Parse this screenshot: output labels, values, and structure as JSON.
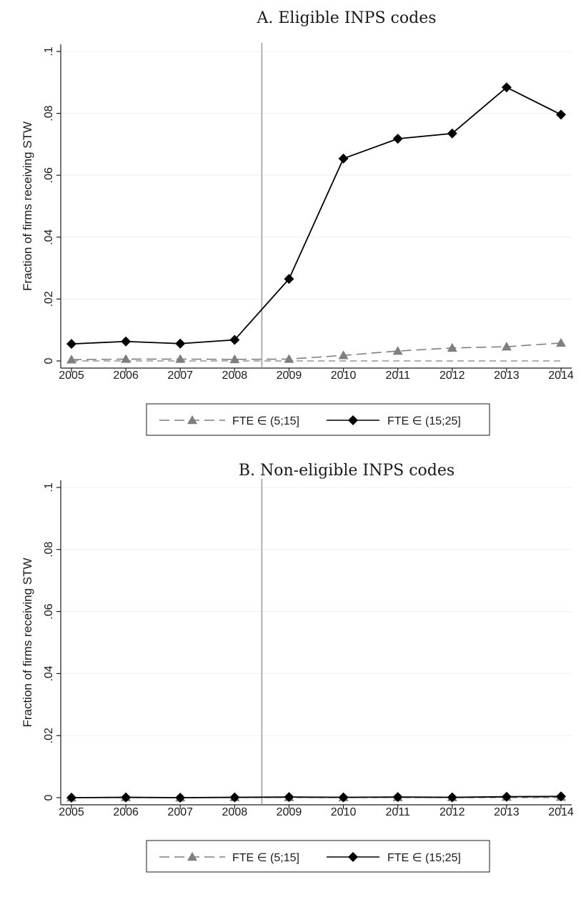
{
  "chart_data": [
    {
      "type": "line",
      "title": "A. Eligible INPS codes",
      "ylabel": "Fraction of firms receiving STW",
      "xlabel": "",
      "x": [
        2005,
        2006,
        2007,
        2008,
        2009,
        2010,
        2011,
        2012,
        2013,
        2014
      ],
      "x_tick_labels": [
        "2005",
        "2006",
        "2007",
        "2008",
        "2009",
        "2010",
        "2011",
        "2012",
        "2013",
        "2014"
      ],
      "ylim": [
        0,
        0.1
      ],
      "y_ticks": [
        0,
        0.02,
        0.04,
        0.06,
        0.08,
        0.1
      ],
      "y_tick_labels": [
        "0",
        ".02",
        ".04",
        ".06",
        ".08",
        ".1"
      ],
      "grid": true,
      "reference_lines": {
        "vertical_x": 2008.5,
        "horizontal_y": 0
      },
      "legend_position": "bottom",
      "series": [
        {
          "name": "FTE ∈ (5;15]",
          "values": [
            0.0004,
            0.0006,
            0.0006,
            0.0005,
            0.0006,
            0.0018,
            0.0032,
            0.0042,
            0.0046,
            0.0058
          ],
          "color": "#7f7f7f",
          "dash": "dashed",
          "marker": "triangle"
        },
        {
          "name": "FTE ∈ (15;25]",
          "values": [
            0.0055,
            0.0063,
            0.0056,
            0.0068,
            0.0265,
            0.0654,
            0.0718,
            0.0735,
            0.0884,
            0.0796
          ],
          "color": "#000000",
          "dash": "solid",
          "marker": "diamond"
        }
      ]
    },
    {
      "type": "line",
      "title": "B. Non-eligible INPS codes",
      "ylabel": "Fraction of firms receiving STW",
      "xlabel": "",
      "x": [
        2005,
        2006,
        2007,
        2008,
        2009,
        2010,
        2011,
        2012,
        2013,
        2014
      ],
      "x_tick_labels": [
        "2005",
        "2006",
        "2007",
        "2008",
        "2009",
        "2010",
        "2011",
        "2012",
        "2013",
        "2014"
      ],
      "ylim": [
        0,
        0.1
      ],
      "y_ticks": [
        0,
        0.02,
        0.04,
        0.06,
        0.08,
        0.1
      ],
      "y_tick_labels": [
        "0",
        ".02",
        ".04",
        ".06",
        ".08",
        ".1"
      ],
      "grid": true,
      "reference_lines": {
        "vertical_x": 2008.5,
        "horizontal_y": 0
      },
      "legend_position": "bottom",
      "series": [
        {
          "name": "FTE ∈ (5;15]",
          "values": [
            0.0,
            0.0001,
            0.0,
            0.0001,
            0.0001,
            0.0001,
            0.0001,
            0.0001,
            0.0002,
            0.0002
          ],
          "color": "#7f7f7f",
          "dash": "dashed",
          "marker": "triangle"
        },
        {
          "name": "FTE ∈ (15;25]",
          "values": [
            0.0,
            0.0001,
            0.0,
            0.0001,
            0.0002,
            0.0001,
            0.0002,
            0.0001,
            0.0003,
            0.0004
          ],
          "color": "#000000",
          "dash": "solid",
          "marker": "diamond"
        }
      ]
    }
  ]
}
